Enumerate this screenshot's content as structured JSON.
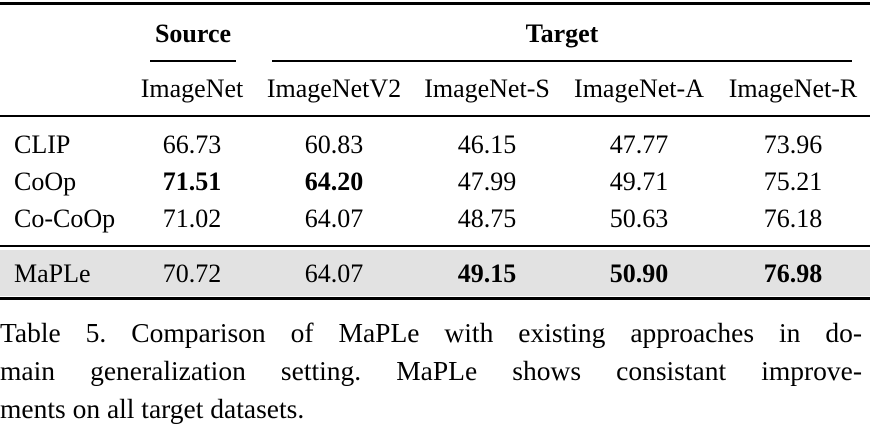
{
  "table": {
    "group_headers": {
      "source": "Source",
      "target": "Target"
    },
    "columns": [
      "ImageNet",
      "ImageNetV2",
      "ImageNet-S",
      "ImageNet-A",
      "ImageNet-R"
    ],
    "rows": [
      {
        "method": "CLIP",
        "values": [
          "66.73",
          "60.83",
          "46.15",
          "47.77",
          "73.96"
        ],
        "bold": [
          false,
          false,
          false,
          false,
          false
        ]
      },
      {
        "method": "CoOp",
        "values": [
          "71.51",
          "64.20",
          "47.99",
          "49.71",
          "75.21"
        ],
        "bold": [
          true,
          true,
          false,
          false,
          false
        ]
      },
      {
        "method": "Co-CoOp",
        "values": [
          "71.02",
          "64.07",
          "48.75",
          "50.63",
          "76.18"
        ],
        "bold": [
          false,
          false,
          false,
          false,
          false
        ]
      },
      {
        "method": "MaPLe",
        "values": [
          "70.72",
          "64.07",
          "49.15",
          "50.90",
          "76.98"
        ],
        "bold": [
          false,
          false,
          true,
          true,
          true
        ],
        "highlight_color": "#e2e2e2"
      }
    ]
  },
  "caption": {
    "lines": [
      "Table 5.  Comparison of MaPLe with existing approaches in do-",
      "main generalization setting.  MaPLe shows consistant improve-",
      "ments on all target datasets."
    ]
  }
}
